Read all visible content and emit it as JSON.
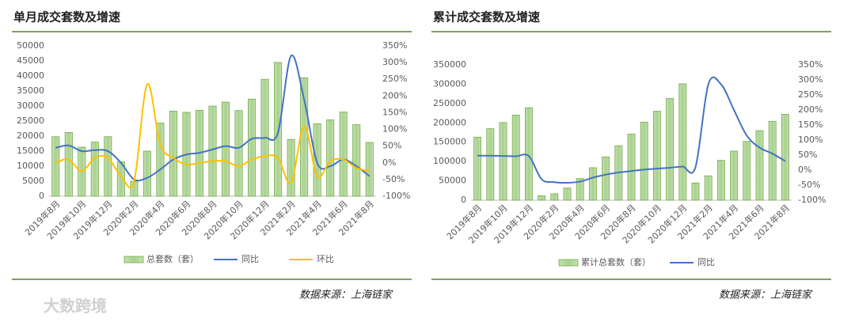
{
  "watermark": "大数跨境",
  "chart_data": [
    {
      "type": "combo",
      "title": "单月成交套数及增速",
      "source": "数据来源：上海链家",
      "categories": [
        "2019年8月",
        null,
        "2019年10月",
        null,
        "2019年12月",
        null,
        "2020年2月",
        null,
        "2020年4月",
        null,
        "2020年6月",
        null,
        "2020年8月",
        null,
        "2020年10月",
        null,
        "2020年12月",
        null,
        "2021年2月",
        null,
        "2021年4月",
        null,
        "2021年6月",
        null,
        "2021年8月"
      ],
      "series": [
        {
          "name": "总套数（套）",
          "type": "bar",
          "color": "#a9d18e",
          "values": [
            19800,
            21200,
            16300,
            18000,
            19800,
            11500,
            5000,
            15000,
            24300,
            28300,
            27900,
            28600,
            30000,
            31300,
            28500,
            32300,
            38900,
            44500,
            18900,
            39400,
            24100,
            25400,
            28000,
            23800,
            17900
          ]
        },
        {
          "name": "同比",
          "type": "line",
          "axis": "y2",
          "color": "#4472c4",
          "values": [
            45,
            52,
            35,
            38,
            35,
            0,
            -50,
            -45,
            -20,
            10,
            25,
            30,
            40,
            50,
            45,
            72,
            75,
            90,
            320,
            190,
            0,
            -10,
            10,
            -10,
            -40
          ]
        },
        {
          "name": "环比",
          "type": "line",
          "axis": "y2",
          "color": "#ffc000",
          "values": [
            0,
            10,
            -25,
            15,
            15,
            -40,
            -55,
            235,
            55,
            15,
            -5,
            0,
            5,
            5,
            -10,
            10,
            20,
            15,
            -60,
            110,
            -40,
            5,
            10,
            -15,
            -25
          ]
        }
      ],
      "ylim": [
        0,
        50000
      ],
      "yticks": [
        0,
        5000,
        10000,
        15000,
        20000,
        25000,
        30000,
        35000,
        40000,
        45000,
        50000
      ],
      "y2lim": [
        -100,
        350
      ],
      "y2ticks": [
        {
          "value": -100,
          "label": "-100%"
        },
        {
          "value": -50,
          "label": "-50%"
        },
        {
          "value": 0,
          "label": "0%"
        },
        {
          "value": 50,
          "label": "50%"
        },
        {
          "value": 100,
          "label": "100%"
        },
        {
          "value": 150,
          "label": "150%"
        },
        {
          "value": 200,
          "label": "200%"
        },
        {
          "value": 250,
          "label": "250%"
        },
        {
          "value": 300,
          "label": "300%"
        },
        {
          "value": 350,
          "label": "350%"
        }
      ],
      "grid": false
    },
    {
      "type": "combo",
      "title": "累计成交套数及增速",
      "source": "数据来源：上海链家",
      "categories": [
        "2019年8月",
        null,
        "2019年10月",
        null,
        "2019年12月",
        null,
        "2020年2月",
        null,
        "2020年4月",
        null,
        "2020年6月",
        null,
        "2020年8月",
        null,
        "2020年10月",
        null,
        "2020年12月",
        null,
        "2021年2月",
        null,
        "2021年4月",
        null,
        "2021年6月",
        null,
        "2021年8月"
      ],
      "series": [
        {
          "name": "累计总套数（套）",
          "type": "bar",
          "color": "#a9d18e",
          "values": [
            163000,
            185000,
            201000,
            220000,
            239000,
            11500,
            16500,
            31500,
            56000,
            84000,
            112000,
            141000,
            171000,
            202000,
            230000,
            263000,
            301000,
            44500,
            63000,
            103000,
            127000,
            152000,
            180000,
            204000,
            222000
          ]
        },
        {
          "name": "同比",
          "type": "line",
          "axis": "y2",
          "color": "#4472c4",
          "values": [
            48,
            48,
            47,
            46,
            47,
            -30,
            -40,
            -42,
            -38,
            -25,
            -15,
            -8,
            -3,
            2,
            5,
            8,
            12,
            10,
            285,
            285,
            200,
            115,
            75,
            55,
            30
          ]
        }
      ],
      "ylim": [
        0,
        350000
      ],
      "yticks": [
        0,
        50000,
        100000,
        150000,
        200000,
        250000,
        300000,
        350000
      ],
      "y2lim": [
        -100,
        350
      ],
      "y2ticks": [
        {
          "value": -100,
          "label": "-100%"
        },
        {
          "value": -50,
          "label": "-50%"
        },
        {
          "value": 0,
          "label": "0%"
        },
        {
          "value": 50,
          "label": "50%"
        },
        {
          "value": 100,
          "label": "100%"
        },
        {
          "value": 150,
          "label": "150%"
        },
        {
          "value": 200,
          "label": "200%"
        },
        {
          "value": 250,
          "label": "250%"
        },
        {
          "value": 300,
          "label": "300%"
        },
        {
          "value": 350,
          "label": "350%"
        }
      ],
      "grid": false
    }
  ]
}
